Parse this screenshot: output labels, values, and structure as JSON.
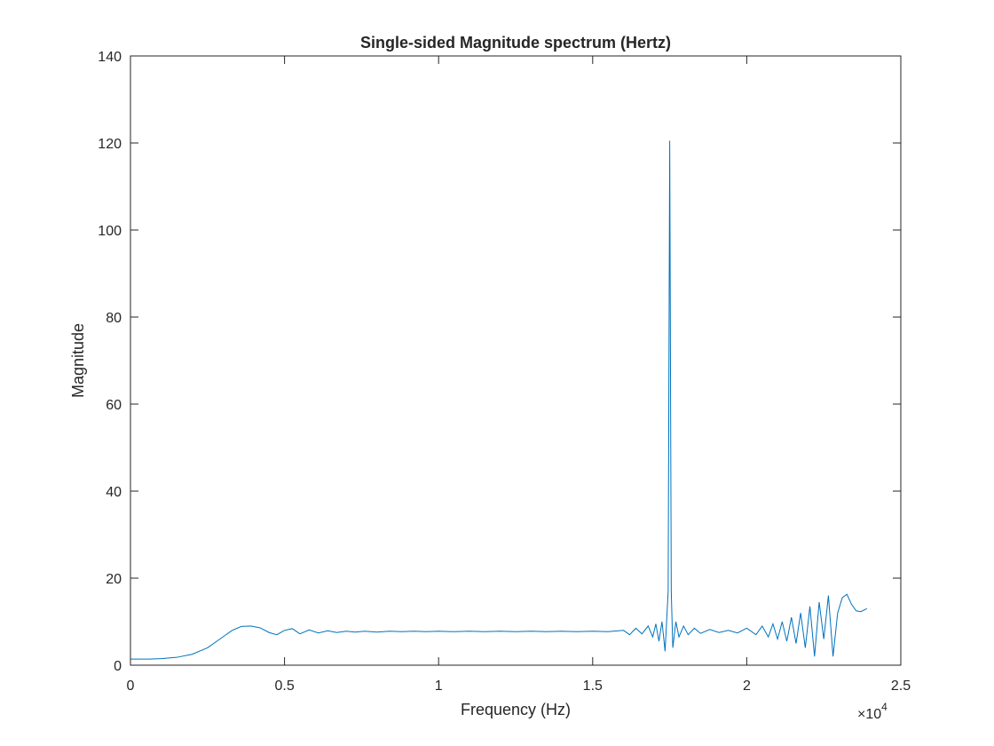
{
  "chart_data": {
    "type": "line",
    "title": "Single-sided Magnitude spectrum (Hertz)",
    "xlabel": "Frequency (Hz)",
    "ylabel": "Magnitude",
    "xlim": [
      0,
      25000
    ],
    "ylim": [
      0,
      140
    ],
    "x_exponent": {
      "base": "×10",
      "power": "4"
    },
    "xticks": [
      0,
      5000,
      10000,
      15000,
      20000,
      25000
    ],
    "xtick_labels": [
      "0",
      "0.5",
      "1",
      "1.5",
      "2",
      "2.5"
    ],
    "yticks": [
      0,
      20,
      40,
      60,
      80,
      100,
      120,
      140
    ],
    "ytick_labels": [
      "0",
      "20",
      "40",
      "60",
      "80",
      "100",
      "120",
      "140"
    ],
    "grid": false,
    "line_color": "#0072BD",
    "series": [
      {
        "x": [
          0,
          600,
          1000,
          1500,
          2000,
          2500,
          2900,
          3300,
          3600,
          3900,
          4200,
          4500,
          4750,
          5000,
          5250,
          5500,
          5800,
          6100,
          6400,
          6700,
          7000,
          7300,
          7600,
          8000,
          8400,
          8800,
          9200,
          9600,
          10000,
          10500,
          11000,
          11500,
          12000,
          12500,
          13000,
          13500,
          14000,
          14500,
          15000,
          15500,
          16000,
          16200,
          16400,
          16600,
          16800,
          16950,
          17050,
          17150,
          17250,
          17350,
          17450,
          17500,
          17550,
          17600,
          17700,
          17800,
          17950,
          18100,
          18300,
          18500,
          18800,
          19100,
          19400,
          19700,
          20000,
          20300,
          20500,
          20700,
          20850,
          21000,
          21150,
          21300,
          21450,
          21600,
          21750,
          21900,
          22050,
          22200,
          22350,
          22500,
          22650,
          22800,
          22950,
          23100,
          23250,
          23400,
          23550,
          23700,
          23900
        ],
        "y": [
          1.4,
          1.4,
          1.5,
          1.8,
          2.5,
          4.0,
          6.0,
          8.0,
          8.9,
          9.0,
          8.6,
          7.5,
          7.0,
          8.0,
          8.4,
          7.2,
          8.1,
          7.4,
          7.9,
          7.5,
          7.8,
          7.6,
          7.8,
          7.6,
          7.8,
          7.7,
          7.8,
          7.7,
          7.8,
          7.7,
          7.8,
          7.7,
          7.8,
          7.7,
          7.8,
          7.7,
          7.8,
          7.7,
          7.8,
          7.7,
          8.0,
          7.0,
          8.5,
          7.2,
          9.0,
          6.5,
          9.5,
          5.5,
          10.0,
          3.2,
          17.0,
          120.5,
          17.0,
          4.0,
          10.0,
          6.5,
          9.0,
          7.0,
          8.5,
          7.3,
          8.2,
          7.5,
          8.0,
          7.4,
          8.5,
          7.0,
          9.0,
          6.5,
          9.5,
          6.0,
          10.0,
          5.5,
          11.0,
          5.0,
          12.0,
          4.0,
          13.5,
          2.0,
          14.5,
          6.0,
          16.0,
          2.0,
          12.0,
          15.5,
          16.3,
          14.0,
          12.5,
          12.3,
          13.0
        ]
      }
    ]
  }
}
